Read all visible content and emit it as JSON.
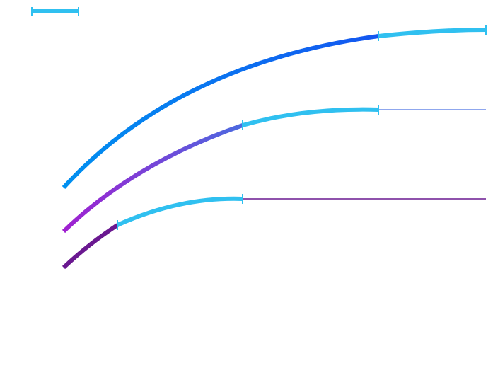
{
  "colors": {
    "background": "#ffffff",
    "blue_curve_start": "#0090f0",
    "blue_curve_end": "#1456f0",
    "highlight": "#30c0f0",
    "purple_curve_start": "#a020d0",
    "purple_curve_end": "#4b6ae0",
    "dark_purple_curve": "#6a1890",
    "dark_purple_flat": "#6a1890",
    "blue_flat": "#6a8ae8"
  },
  "legend": {
    "icon": "highlight-segment-line"
  },
  "curves": [
    {
      "id": "top",
      "icon": "gradient-curve-blue"
    },
    {
      "id": "middle",
      "icon": "gradient-curve-purple-blue"
    },
    {
      "id": "bottom",
      "icon": "curve-dark-purple"
    }
  ]
}
